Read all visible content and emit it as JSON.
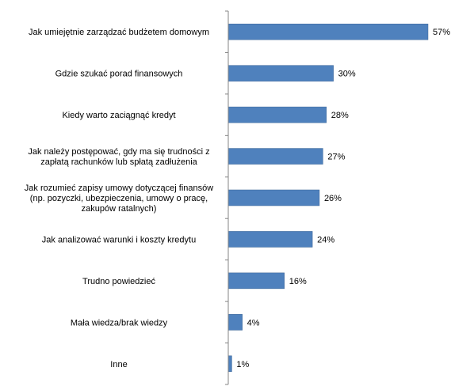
{
  "chart_data": {
    "type": "bar",
    "orientation": "horizontal",
    "categories": [
      [
        "Jak umiejętnie zarządzać budżetem domowym"
      ],
      [
        "Gdzie szukać porad finansowych"
      ],
      [
        "Kiedy warto zaciągnąć kredyt"
      ],
      [
        "Jak należy postępować, gdy ma się trudności z",
        "zapłatą rachunków lub spłatą zadłużenia"
      ],
      [
        "Jak rozumieć zapisy umowy dotyczącej finansów",
        "(np. pozyczki, ubezpieczenia, umowy o pracę,",
        "zakupów ratalnych)"
      ],
      [
        "Jak analizować warunki i koszty kredytu"
      ],
      [
        "Trudno powiedzieć"
      ],
      [
        "Mała wiedza/brak  wiedzy"
      ],
      [
        "Inne"
      ]
    ],
    "values": [
      57,
      30,
      28,
      27,
      26,
      24,
      16,
      4,
      1
    ],
    "value_labels": [
      "57%",
      "30%",
      "28%",
      "27%",
      "26%",
      "24%",
      "16%",
      "4%",
      "1%"
    ],
    "xlim": [
      0,
      57
    ],
    "grid": false,
    "legend": "none",
    "colors": {
      "bar": "#4f81bd",
      "bar_stroke": "#3a6496",
      "axis": "#868686"
    }
  }
}
